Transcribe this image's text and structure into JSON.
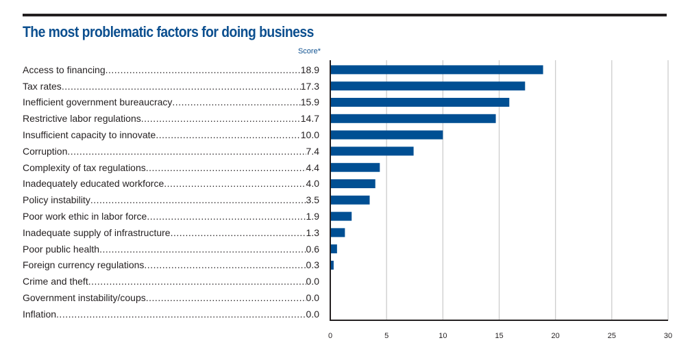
{
  "chart_data": {
    "type": "bar",
    "orientation": "horizontal",
    "title": "The most problematic factors for doing business",
    "value_header": "Score*",
    "xlabel": "",
    "ylabel": "",
    "xlim": [
      0,
      30
    ],
    "xticks": [
      0,
      5,
      10,
      15,
      20,
      25,
      30
    ],
    "grid": true,
    "bar_color": "#004f93",
    "categories": [
      "Access to financing",
      "Tax rates",
      "Inefficient government bureaucracy",
      "Restrictive labor regulations",
      "Insufficient capacity to innovate",
      "Corruption",
      "Complexity of tax regulations",
      "Inadequately educated workforce",
      "Policy instability",
      "Poor work ethic in labor force",
      "Inadequate supply of infrastructure",
      "Poor public health",
      "Foreign currency regulations",
      "Crime and theft",
      "Government instability/coups",
      "Inflation"
    ],
    "values": [
      18.9,
      17.3,
      15.9,
      14.7,
      10.0,
      7.4,
      4.4,
      4.0,
      3.5,
      1.9,
      1.3,
      0.6,
      0.3,
      0.0,
      0.0,
      0.0
    ],
    "value_labels": [
      "18.9",
      "17.3",
      "15.9",
      "14.7",
      "10.0",
      "7.4",
      "4.4",
      "4.0",
      "3.5",
      "1.9",
      "1.3",
      "0.6",
      "0.3",
      "0.0",
      "0.0",
      "0.0"
    ]
  }
}
